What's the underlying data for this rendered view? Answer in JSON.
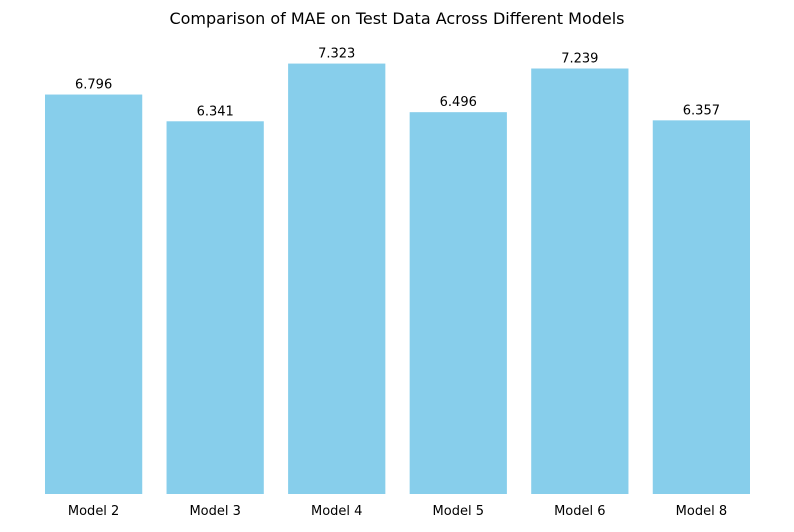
{
  "chart_data": {
    "type": "bar",
    "title": "Comparison of MAE on Test Data Across Different Models",
    "xlabel": "",
    "ylabel": "",
    "categories": [
      "Model 2",
      "Model 3",
      "Model 4",
      "Model 5",
      "Model 6",
      "Model 8"
    ],
    "values": [
      6.796,
      6.341,
      7.323,
      6.496,
      7.239,
      6.357
    ],
    "value_labels": [
      "6.796",
      "6.341",
      "7.323",
      "6.496",
      "7.239",
      "6.357"
    ],
    "ylim": [
      0,
      7.69
    ],
    "grid": false,
    "legend": "none",
    "y_axis_visible": false,
    "colors": {
      "bar": "#87CEEB",
      "text": "#000000",
      "background": "#ffffff"
    }
  }
}
